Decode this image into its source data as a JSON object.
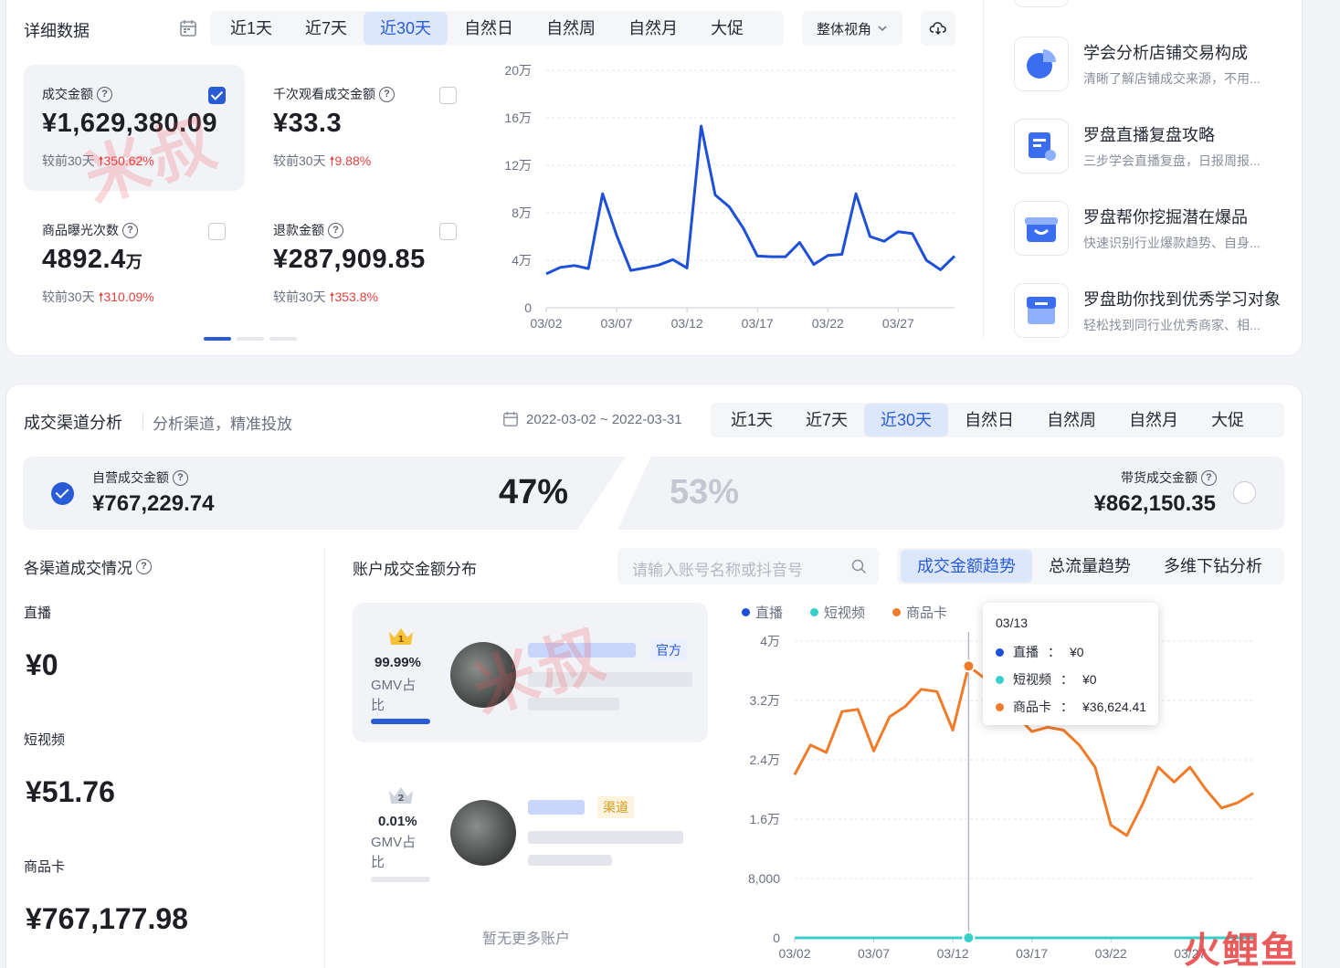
{
  "top": {
    "title": "详细数据",
    "tabs": [
      "近1天",
      "近7天",
      "近30天",
      "自然日",
      "自然周",
      "自然月",
      "大促"
    ],
    "active_tab": "近30天",
    "view_select": "整体视角",
    "metrics": [
      {
        "label": "成交金额",
        "value": "¥1,629,380.09",
        "cmp_label": "较前30天",
        "cmp_value": "350.62%",
        "checked": true
      },
      {
        "label": "千次观看成交金额",
        "value": "¥33.3",
        "cmp_label": "较前30天",
        "cmp_value": "9.88%",
        "checked": false
      },
      {
        "label": "商品曝光次数",
        "value": "4892.4",
        "value_unit": "万",
        "cmp_label": "较前30天",
        "cmp_value": "310.09%",
        "checked": false
      },
      {
        "label": "退款金额",
        "value": "¥287,909.85",
        "cmp_label": "较前30天",
        "cmp_value": "353.8%",
        "checked": false
      }
    ],
    "pagination": {
      "pages": 3,
      "current": 1
    }
  },
  "chart_data": [
    {
      "type": "line",
      "x": [
        "03/02",
        "03/03",
        "03/04",
        "03/05",
        "03/06",
        "03/07",
        "03/08",
        "03/09",
        "03/10",
        "03/11",
        "03/12",
        "03/13",
        "03/14",
        "03/15",
        "03/16",
        "03/17",
        "03/18",
        "03/19",
        "03/20",
        "03/21",
        "03/22",
        "03/23",
        "03/24",
        "03/25",
        "03/26",
        "03/27",
        "03/28",
        "03/29",
        "03/30",
        "03/31"
      ],
      "x_ticks": [
        "03/02",
        "03/07",
        "03/12",
        "03/17",
        "03/22",
        "03/27"
      ],
      "y_ticks": [
        "0",
        "4万",
        "8万",
        "12万",
        "16万",
        "20万"
      ],
      "ylim": [
        0,
        200000
      ],
      "series": [
        {
          "color": "#1d4fd8",
          "values": [
            28500,
            34000,
            35500,
            33000,
            96000,
            61000,
            31500,
            33500,
            36000,
            40500,
            33500,
            153000,
            95000,
            85000,
            67000,
            43500,
            43000,
            43000,
            55000,
            36500,
            44000,
            45000,
            96000,
            60000,
            56000,
            64000,
            62500,
            40000,
            32000,
            43500
          ]
        }
      ]
    },
    {
      "type": "line",
      "x": [
        "03/02",
        "03/03",
        "03/04",
        "03/05",
        "03/06",
        "03/07",
        "03/08",
        "03/09",
        "03/10",
        "03/11",
        "03/12",
        "03/13",
        "03/14",
        "03/15",
        "03/16",
        "03/17",
        "03/18",
        "03/19",
        "03/20",
        "03/21",
        "03/22",
        "03/23",
        "03/24",
        "03/25",
        "03/26",
        "03/27",
        "03/28",
        "03/29",
        "03/30",
        "03/31"
      ],
      "x_ticks": [
        "03/02",
        "03/07",
        "03/12",
        "03/17",
        "03/22",
        "03/27"
      ],
      "y_ticks": [
        "0",
        "8,000",
        "1.6万",
        "2.4万",
        "3.2万",
        "4万"
      ],
      "ylim": [
        0,
        40000
      ],
      "series": [
        {
          "name": "直播",
          "color": "#1d4fd8",
          "values": [
            0,
            0,
            0,
            0,
            0,
            0,
            0,
            0,
            0,
            0,
            0,
            0,
            0,
            0,
            0,
            0,
            0,
            0,
            0,
            0,
            0,
            0,
            0,
            0,
            0,
            0,
            0,
            0,
            0,
            0
          ]
        },
        {
          "name": "短视频",
          "color": "#36cfc9",
          "values": [
            0,
            0,
            0,
            0,
            0,
            0,
            0,
            0,
            0,
            0,
            0,
            0,
            0,
            0,
            0,
            0,
            0,
            0,
            0,
            0,
            0,
            0,
            0,
            0,
            0,
            0,
            0,
            0,
            0,
            0
          ]
        },
        {
          "name": "商品卡",
          "color": "#f07c2a",
          "values": [
            22000,
            26000,
            25000,
            30500,
            30800,
            25200,
            29800,
            31200,
            33500,
            33200,
            28000,
            36624,
            35000,
            32000,
            30000,
            27800,
            28400,
            28000,
            26000,
            23000,
            15200,
            13800,
            18000,
            23000,
            21000,
            23000,
            20000,
            17500,
            18200,
            19500
          ]
        }
      ],
      "highlight_index": 11
    }
  ],
  "guides": {
    "items": [
      {
        "title": "学会分析店铺交易构成",
        "desc": "清晰了解店铺成交来源，不用..."
      },
      {
        "title": "罗盘直播复盘攻略",
        "desc": "三步学会直播复盘，日报周报..."
      },
      {
        "title": "罗盘帮你挖掘潜在爆品",
        "desc": "快速识别行业爆款趋势、自身..."
      },
      {
        "title": "罗盘助你找到优秀学习对象",
        "desc": "轻松找到同行业优秀商家、相..."
      }
    ],
    "colors": {
      "icon": "#3a6df0"
    }
  },
  "bottom": {
    "title": "成交渠道分析",
    "subtitle": "分析渠道，精准投放",
    "date_range": "2022-03-02 ~ 2022-03-31",
    "tabs": [
      "近1天",
      "近7天",
      "近30天",
      "自然日",
      "自然周",
      "自然月",
      "大促"
    ],
    "active_tab": "近30天",
    "self": {
      "label": "自营成交金额",
      "value": "¥767,229.74",
      "pct": "47%"
    },
    "partner": {
      "label": "带货成交金额",
      "value": "¥862,150.35",
      "pct": "53%"
    },
    "channels": {
      "title": "各渠道成交情况",
      "items": [
        {
          "label": "直播",
          "value": "¥0"
        },
        {
          "label": "短视频",
          "value": "¥51.76"
        },
        {
          "label": "商品卡",
          "value": "¥767,177.98"
        }
      ]
    },
    "accounts": {
      "title": "账户成交金额分布",
      "search_placeholder": "请输入账号名称或抖音号",
      "list": [
        {
          "rank": "1",
          "pct": "99.99%",
          "pct_label": "GMV占比",
          "badge": "官方",
          "share": 0.9999
        },
        {
          "rank": "2",
          "pct": "0.01%",
          "pct_label": "GMV占比",
          "badge": "渠道",
          "share": 0.0001
        }
      ],
      "empty_text": "暂无更多账户"
    },
    "trend_tabs": [
      "成交金额趋势",
      "总流量趋势",
      "多维下钻分析"
    ],
    "active_trend_tab": "成交金额趋势",
    "tooltip": {
      "date": "03/13",
      "rows": [
        {
          "name": "直播",
          "value": "¥0",
          "color": "#1d4fd8"
        },
        {
          "name": "短视频",
          "value": "¥0",
          "color": "#36cfc9"
        },
        {
          "name": "商品卡",
          "value": "¥36,624.41",
          "color": "#f07c2a"
        }
      ]
    }
  },
  "watermarks": {
    "text": "米叔",
    "logo": "火鲤鱼"
  }
}
